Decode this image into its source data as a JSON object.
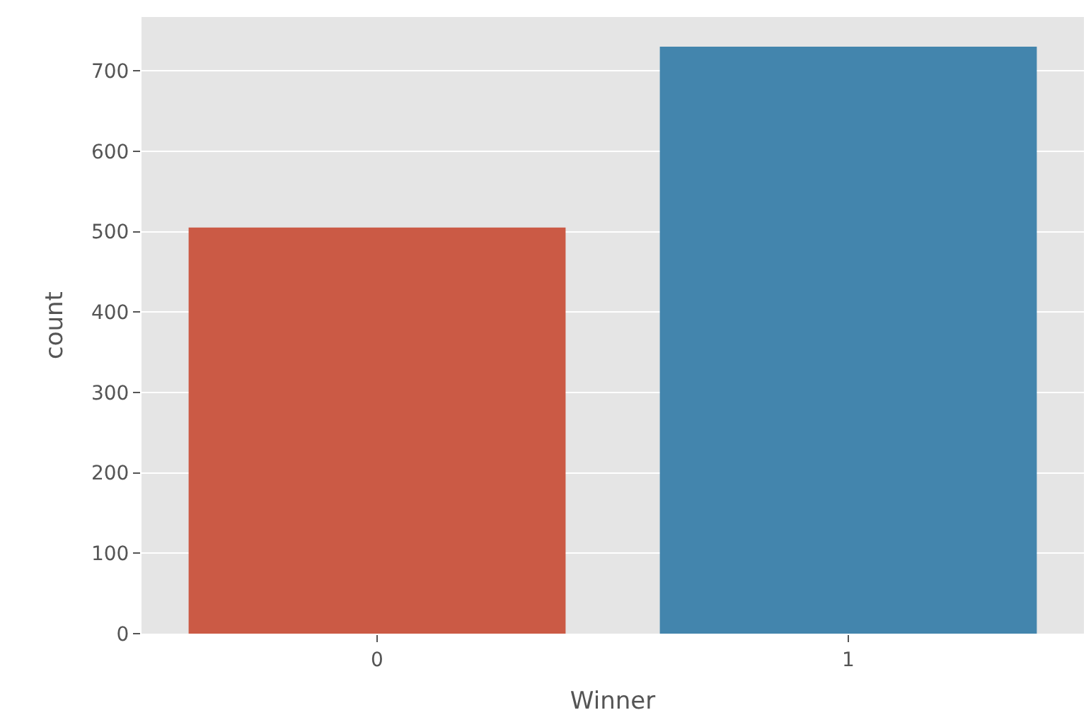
{
  "chart_data": {
    "type": "bar",
    "xlabel": "Winner",
    "ylabel": "count",
    "categories": [
      "0",
      "1"
    ],
    "values": [
      505,
      730
    ],
    "colors": [
      "#cb5a45",
      "#4385ad"
    ],
    "ylim": [
      0,
      767
    ],
    "yticks": [
      0,
      100,
      200,
      300,
      400,
      500,
      600,
      700
    ],
    "grid": "y"
  }
}
